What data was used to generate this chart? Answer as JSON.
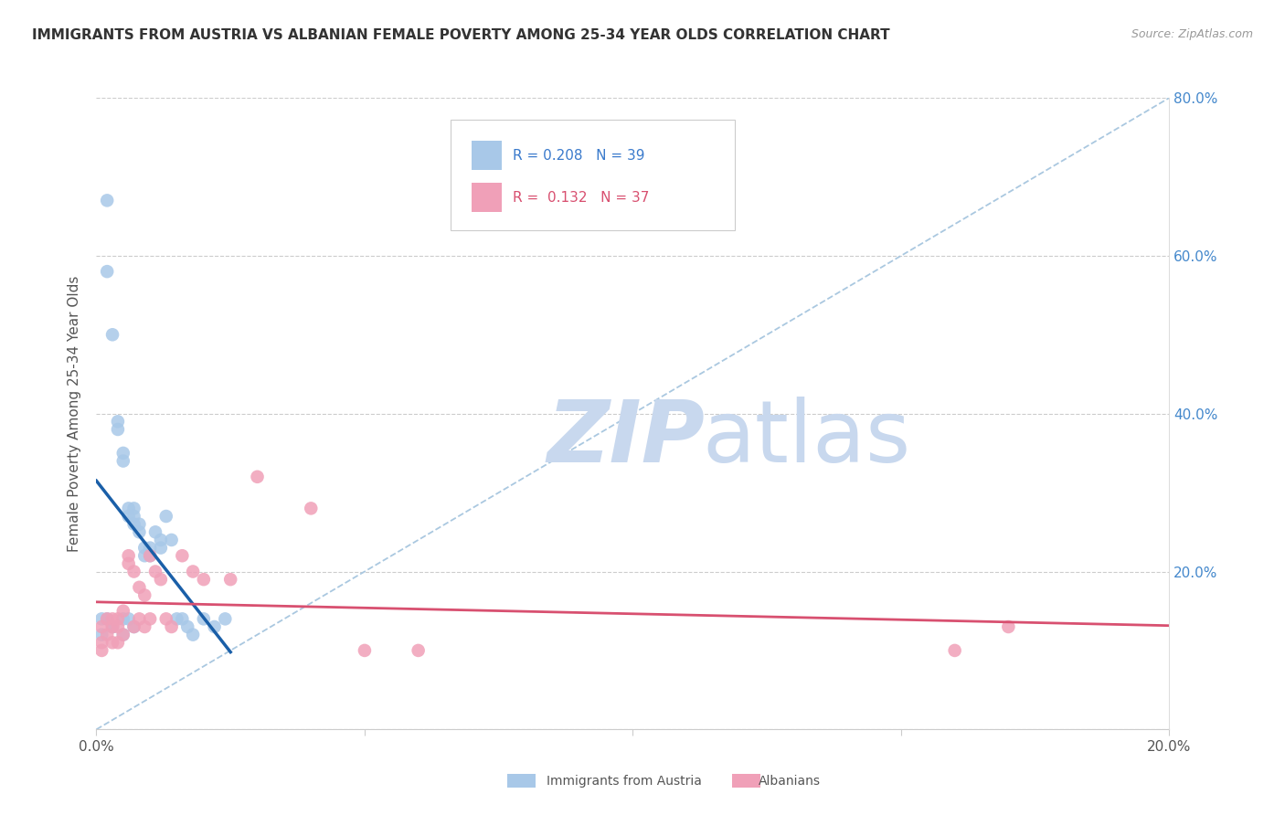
{
  "title": "IMMIGRANTS FROM AUSTRIA VS ALBANIAN FEMALE POVERTY AMONG 25-34 YEAR OLDS CORRELATION CHART",
  "source_text": "Source: ZipAtlas.com",
  "ylabel": "Female Poverty Among 25-34 Year Olds",
  "xlim": [
    0.0,
    0.2
  ],
  "ylim": [
    0.0,
    0.8
  ],
  "blue_color": "#a8c8e8",
  "pink_color": "#f0a0b8",
  "blue_line_color": "#1a5fa8",
  "pink_line_color": "#d85070",
  "ref_line_color": "#aac8e0",
  "background_color": "#ffffff",
  "watermark_zip_color": "#c8d8ee",
  "watermark_atlas_color": "#c8d8ee",
  "austria_x": [
    0.001,
    0.001,
    0.002,
    0.002,
    0.002,
    0.003,
    0.003,
    0.003,
    0.004,
    0.004,
    0.005,
    0.005,
    0.005,
    0.005,
    0.006,
    0.006,
    0.006,
    0.007,
    0.007,
    0.007,
    0.007,
    0.008,
    0.008,
    0.009,
    0.009,
    0.01,
    0.01,
    0.011,
    0.012,
    0.012,
    0.013,
    0.014,
    0.015,
    0.016,
    0.017,
    0.018,
    0.02,
    0.022,
    0.024
  ],
  "austria_y": [
    0.14,
    0.12,
    0.67,
    0.58,
    0.14,
    0.5,
    0.13,
    0.13,
    0.39,
    0.38,
    0.35,
    0.34,
    0.14,
    0.12,
    0.28,
    0.27,
    0.14,
    0.28,
    0.27,
    0.26,
    0.13,
    0.26,
    0.25,
    0.23,
    0.22,
    0.23,
    0.22,
    0.25,
    0.24,
    0.23,
    0.27,
    0.24,
    0.14,
    0.14,
    0.13,
    0.12,
    0.14,
    0.13,
    0.14
  ],
  "albanian_x": [
    0.001,
    0.001,
    0.001,
    0.002,
    0.002,
    0.003,
    0.003,
    0.003,
    0.004,
    0.004,
    0.004,
    0.005,
    0.005,
    0.006,
    0.006,
    0.007,
    0.007,
    0.008,
    0.008,
    0.009,
    0.009,
    0.01,
    0.01,
    0.011,
    0.012,
    0.013,
    0.014,
    0.016,
    0.018,
    0.02,
    0.025,
    0.03,
    0.04,
    0.05,
    0.06,
    0.16,
    0.17
  ],
  "albanian_y": [
    0.13,
    0.11,
    0.1,
    0.14,
    0.12,
    0.14,
    0.13,
    0.11,
    0.14,
    0.13,
    0.11,
    0.15,
    0.12,
    0.22,
    0.21,
    0.2,
    0.13,
    0.18,
    0.14,
    0.17,
    0.13,
    0.22,
    0.14,
    0.2,
    0.19,
    0.14,
    0.13,
    0.22,
    0.2,
    0.19,
    0.19,
    0.32,
    0.28,
    0.1,
    0.1,
    0.1,
    0.13
  ]
}
